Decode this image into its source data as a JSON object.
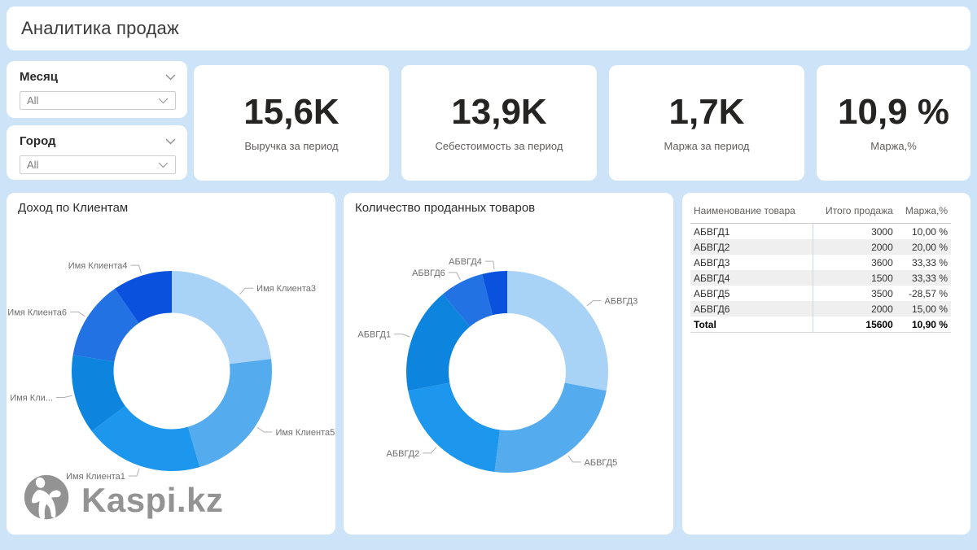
{
  "page": {
    "title": "Аналитика продаж",
    "background": "#cde3f8"
  },
  "filters": [
    {
      "label": "Месяц",
      "value": "All"
    },
    {
      "label": "Город",
      "value": "All"
    }
  ],
  "kpis": [
    {
      "value": "15,6K",
      "label": "Выручка за период"
    },
    {
      "value": "13,9K",
      "label": "Себестоимость за период"
    },
    {
      "value": "1,7K",
      "label": "Маржа за период"
    },
    {
      "value": "10,9 %",
      "label": "Маржа,%"
    }
  ],
  "chart_data": [
    {
      "type": "pie",
      "subtype": "donut",
      "title": "Доход по Клиентам",
      "labels": [
        "Имя Клиента3",
        "Имя Клиента5",
        "Имя Клиента1",
        "Имя Кли...",
        "Имя Клиента6",
        "Имя Клиента4"
      ],
      "values": [
        3600,
        3500,
        3000,
        2000,
        2000,
        1500
      ],
      "total": 15600,
      "colors": [
        "#A8D3F6",
        "#54ABED",
        "#1D97EE",
        "#0D85DF",
        "#2272E4",
        "#0A52DD"
      ],
      "start_angle": "12-oclock",
      "direction": "clockwise",
      "legend": "callout-labels"
    },
    {
      "type": "pie",
      "subtype": "donut",
      "title": "Количество проданных товаров",
      "labels": [
        "АБВГД3",
        "АБВГД5",
        "АБВГД2",
        "АБВГД1",
        "АБВГД6",
        "АБВГД4"
      ],
      "values": [
        28,
        24,
        20,
        17,
        7,
        4
      ],
      "value_unit": "% share, estimated from arc angles",
      "colors": [
        "#A8D3F6",
        "#54ABED",
        "#1D97EE",
        "#0D85DF",
        "#2272E4",
        "#0A52DD"
      ],
      "start_angle": "12-oclock",
      "direction": "clockwise",
      "legend": "callout-labels"
    }
  ],
  "table": {
    "headers": [
      "Наименование товара",
      "Итого продажа",
      "Маржа,%"
    ],
    "rows": [
      [
        "АБВГД1",
        "3000",
        "10,00 %"
      ],
      [
        "АБВГД2",
        "2000",
        "20,00 %"
      ],
      [
        "АБВГД3",
        "3600",
        "33,33 %"
      ],
      [
        "АБВГД4",
        "1500",
        "33,33 %"
      ],
      [
        "АБВГД5",
        "3500",
        "-28,57 %"
      ],
      [
        "АБВГД6",
        "2000",
        "15,00 %"
      ]
    ],
    "total": [
      "Total",
      "15600",
      "10,90 %"
    ]
  },
  "watermark": {
    "brand": "Kaspi.kz",
    "icon": "kaspi-mascot"
  }
}
